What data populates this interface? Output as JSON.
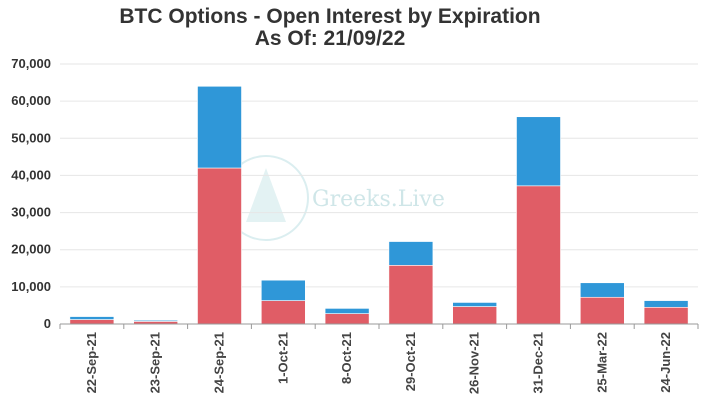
{
  "chart_data": {
    "type": "bar",
    "stacked": true,
    "title": "BTC Options - Open Interest by Expiration",
    "subtitle": "As Of: 21/09/22",
    "categories": [
      "22-Sep-21",
      "23-Sep-21",
      "24-Sep-21",
      "1-Oct-21",
      "8-Oct-21",
      "29-Oct-21",
      "26-Nov-21",
      "31-Dec-21",
      "25-Mar-22",
      "24-Jun-22"
    ],
    "series": [
      {
        "color": "#e05d66",
        "values": [
          1200,
          700,
          42000,
          6300,
          2800,
          15800,
          4700,
          37200,
          7200,
          4500
        ]
      },
      {
        "color": "#2f97d8",
        "values": [
          800,
          300,
          22000,
          5500,
          1400,
          6400,
          1100,
          18600,
          3900,
          1800
        ]
      }
    ],
    "y_ticks": [
      "0",
      "10,000",
      "20,000",
      "30,000",
      "40,000",
      "50,000",
      "60,000",
      "70,000"
    ],
    "ylim": [
      0,
      70000
    ],
    "grid": true,
    "watermark": "Greeks.Live"
  }
}
